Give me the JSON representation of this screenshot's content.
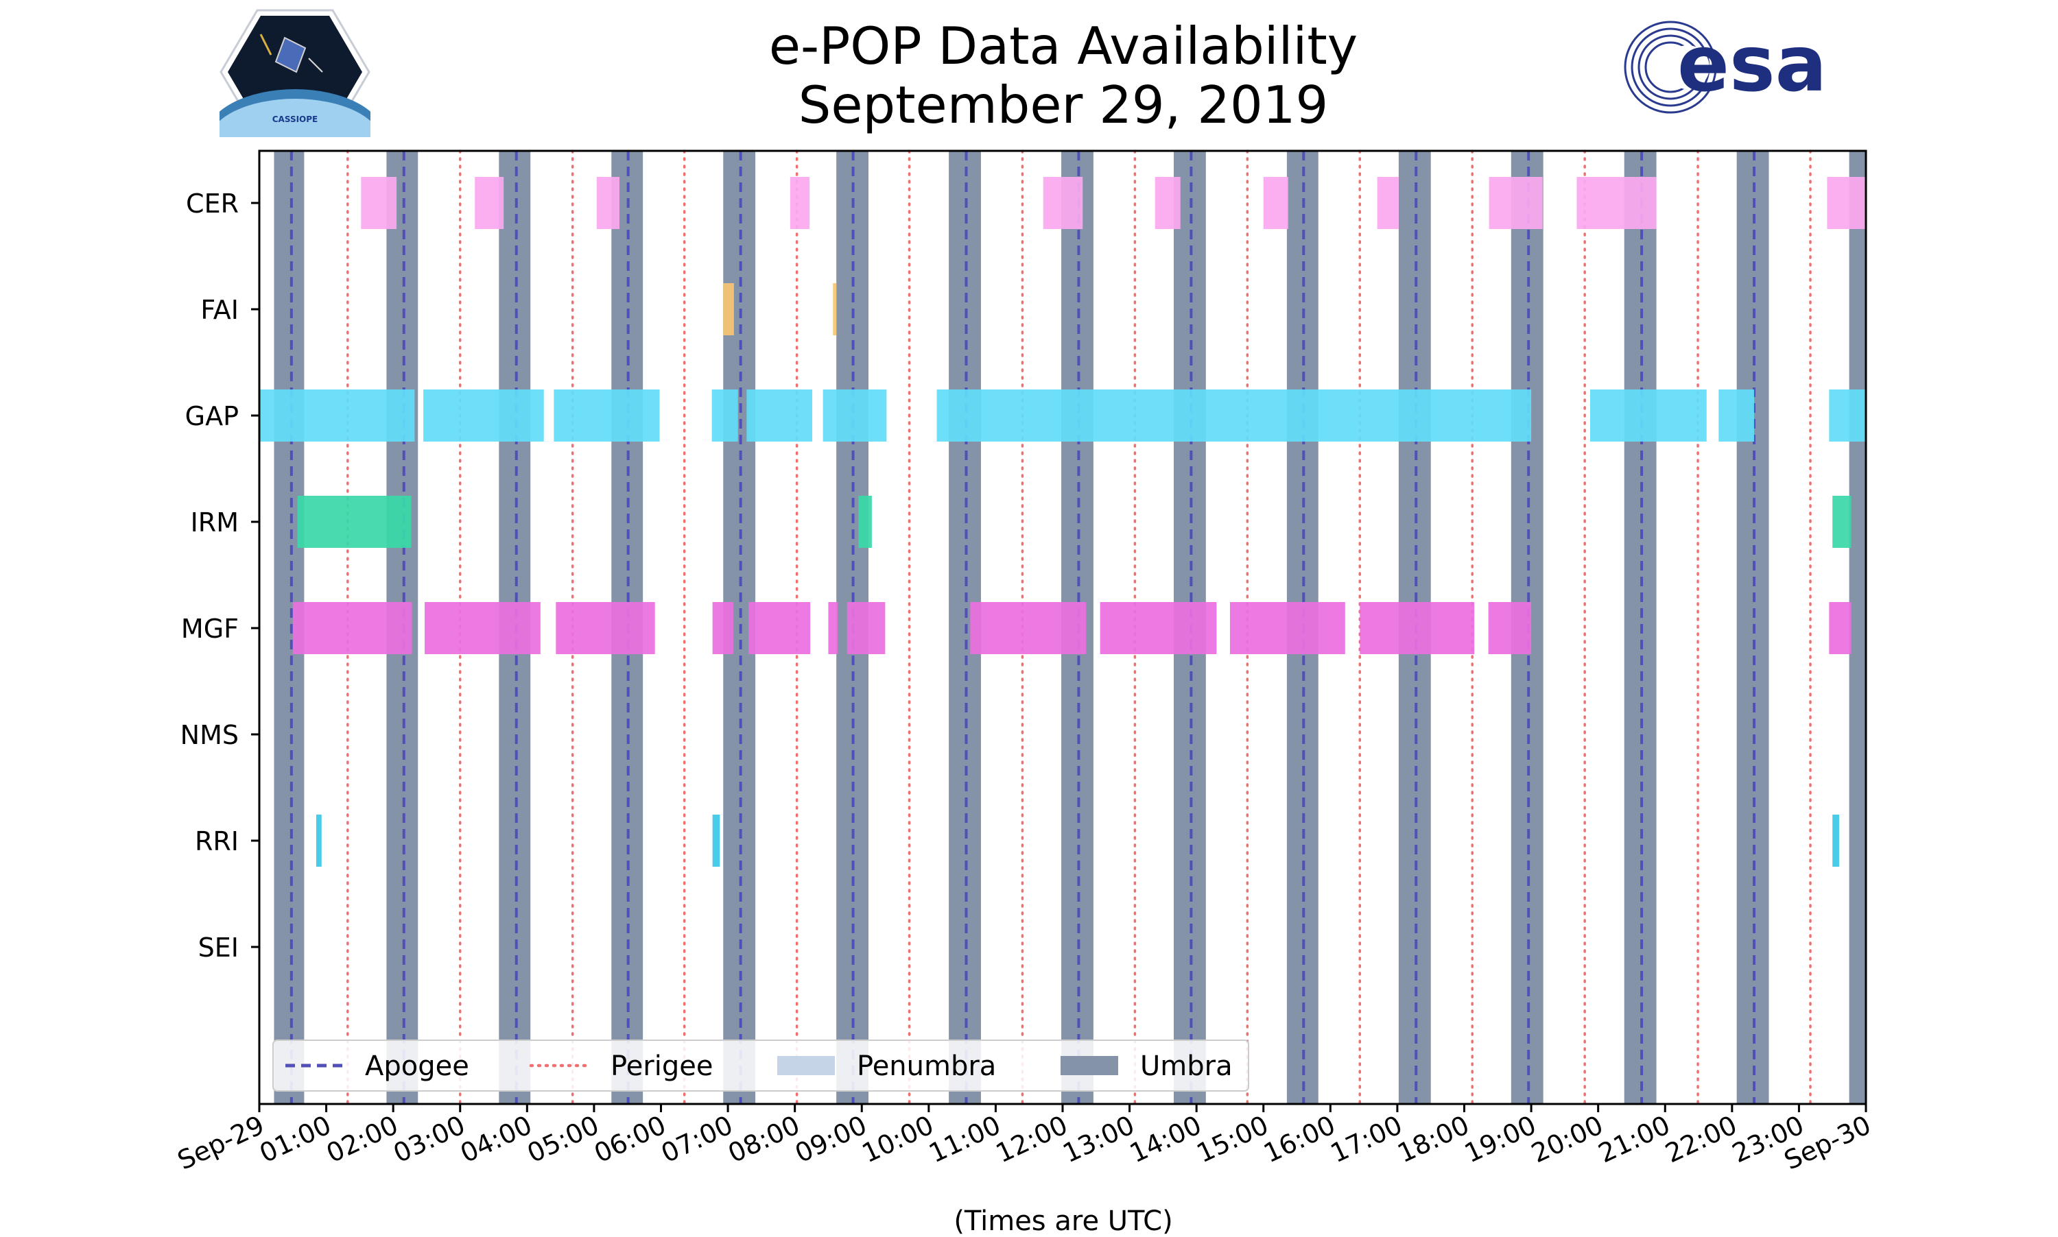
{
  "chart_data": {
    "type": "timeline",
    "title": [
      "e-POP Data Availability",
      "September 29, 2019"
    ],
    "xlabel": "(Times are UTC)",
    "xlim_hours": [
      0,
      24
    ],
    "x_tick_labels": [
      "Sep-29",
      "01:00",
      "02:00",
      "03:00",
      "04:00",
      "05:00",
      "06:00",
      "07:00",
      "08:00",
      "09:00",
      "10:00",
      "11:00",
      "12:00",
      "13:00",
      "14:00",
      "15:00",
      "16:00",
      "17:00",
      "18:00",
      "19:00",
      "20:00",
      "21:00",
      "22:00",
      "23:00",
      "Sep-30"
    ],
    "instruments": [
      "CER",
      "FAI",
      "GAP",
      "IRM",
      "MGF",
      "NMS",
      "RRI",
      "SEI"
    ],
    "colors": {
      "CER": "#fba8f0",
      "FAI": "#f8c371",
      "GAP": "#62dcf8",
      "IRM": "#39d8a8",
      "MGF": "#ec6fe0",
      "NMS": "#cccccc",
      "RRI": "#39c8e8",
      "SEI": "#cccccc",
      "umbra": "#8593a8",
      "penumbra": "#c5d4e6",
      "apogee": "#5250b8",
      "perigee": "#f07070"
    },
    "umbra_intervals": [
      [
        0.22,
        0.67
      ],
      [
        1.9,
        2.37
      ],
      [
        3.58,
        4.05
      ],
      [
        5.26,
        5.73
      ],
      [
        6.93,
        7.41
      ],
      [
        8.62,
        9.1
      ],
      [
        10.3,
        10.78
      ],
      [
        11.98,
        12.46
      ],
      [
        13.66,
        14.14
      ],
      [
        15.35,
        15.82
      ],
      [
        17.02,
        17.5
      ],
      [
        18.7,
        19.18
      ],
      [
        20.39,
        20.87
      ],
      [
        22.07,
        22.55
      ],
      [
        23.75,
        24.0
      ]
    ],
    "apogee_hours": [
      0.48,
      2.16,
      3.84,
      5.51,
      7.19,
      8.87,
      10.56,
      12.24,
      13.92,
      15.6,
      17.28,
      18.96,
      20.65,
      22.33
    ],
    "perigee_hours": [
      1.32,
      3.0,
      4.68,
      6.35,
      8.03,
      9.71,
      11.4,
      13.08,
      14.76,
      16.44,
      18.12,
      19.8,
      21.49,
      23.17
    ],
    "bars": {
      "CER": [
        [
          1.52,
          2.05
        ],
        [
          3.22,
          3.65
        ],
        [
          5.04,
          5.38
        ],
        [
          7.93,
          8.22
        ],
        [
          11.71,
          12.3
        ],
        [
          13.38,
          13.76
        ],
        [
          15.0,
          15.37
        ],
        [
          16.7,
          17.02
        ],
        [
          18.37,
          19.17
        ],
        [
          19.68,
          20.87
        ],
        [
          23.42,
          24.0
        ]
      ],
      "FAI": [
        [
          6.93,
          7.09
        ],
        [
          8.57,
          8.62
        ]
      ],
      "GAP": [
        [
          0.0,
          2.32
        ],
        [
          2.45,
          4.25
        ],
        [
          4.4,
          5.98
        ],
        [
          6.76,
          7.15
        ],
        [
          7.28,
          8.26
        ],
        [
          8.42,
          9.37
        ],
        [
          10.12,
          19.0
        ],
        [
          19.88,
          21.62
        ],
        [
          21.8,
          22.33
        ],
        [
          23.45,
          24.0
        ]
      ],
      "IRM": [
        [
          0.57,
          2.27
        ],
        [
          8.95,
          9.15
        ],
        [
          23.5,
          23.78
        ]
      ],
      "MGF": [
        [
          0.5,
          2.28
        ],
        [
          2.47,
          4.2
        ],
        [
          4.43,
          5.91
        ],
        [
          6.77,
          7.08
        ],
        [
          7.31,
          8.23
        ],
        [
          8.5,
          8.64
        ],
        [
          8.78,
          9.35
        ],
        [
          10.62,
          12.35
        ],
        [
          12.56,
          14.3
        ],
        [
          14.5,
          16.22
        ],
        [
          16.44,
          18.15
        ],
        [
          18.36,
          19.0
        ],
        [
          23.45,
          23.78
        ]
      ],
      "NMS": [],
      "RRI": [
        [
          0.85,
          0.93
        ],
        [
          6.77,
          6.88
        ],
        [
          23.5,
          23.6
        ]
      ],
      "SEI": []
    },
    "legend": {
      "position": "lower-left",
      "entries": [
        {
          "label": "Apogee",
          "style": "dashed"
        },
        {
          "label": "Perigee",
          "style": "dotted"
        },
        {
          "label": "Penumbra",
          "style": "patch"
        },
        {
          "label": "Umbra",
          "style": "patch"
        }
      ]
    }
  },
  "logos": {
    "left_text": "CASSIOPE",
    "right_text": "esa"
  }
}
